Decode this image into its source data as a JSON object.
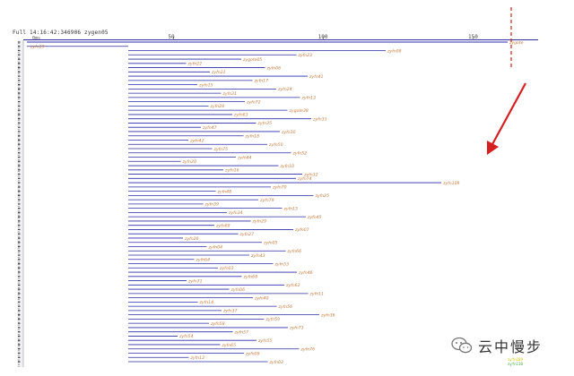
{
  "header": {
    "title": "Full 14:16:42:346906 zygen05",
    "unit_label": "0ms"
  },
  "axis": {
    "ticks": [
      "50",
      "100",
      "150"
    ],
    "range": [
      0,
      175
    ]
  },
  "colors": {
    "line": "#2b2ba8",
    "label": "#c8783a",
    "annotation": "#d42020",
    "axis": "#3030a0"
  },
  "thread_labels": [
    "zygote",
    "zyfn19",
    "zyfn08",
    "zyfn23",
    "zygote05",
    "zyfn22",
    "zyfn06",
    "zyfn21",
    "zyfn41",
    "zyfn17",
    "zyfn15",
    "zyfn24",
    "zyfn31",
    "zyfn13",
    "zyfn72",
    "zyfn28",
    "zygote38",
    "zyfn63",
    "zyfn33",
    "zyfn35",
    "zyfn47",
    "zyfn30",
    "zyfn18",
    "zyfn42",
    "zyfn50",
    "zyfn75",
    "zyfn52",
    "zyfn44",
    "zyfn20",
    "zyfn10",
    "zyfn16",
    "zyfn32",
    "zyfn74",
    "zyfn109",
    "zyfn70",
    "zyfn48",
    "zyfn25",
    "zyfn79",
    "zyfn39",
    "zyfn15",
    "zyfn34",
    "zyfn45",
    "zyfn29",
    "zyfn69",
    "zyfn07",
    "zyfn27",
    "zyfn26",
    "zyfn05",
    "zyfn04",
    "zyfn66",
    "zyfn43",
    "zyfn64",
    "zyfn53",
    "zyfn03",
    "zyfn46",
    "zyfn68",
    "zyfn71",
    "zyfn62",
    "zyfn06",
    "zyfn11",
    "zyfn40",
    "zyfn14",
    "zyfn56",
    "zyfn37",
    "zyfn36",
    "zyfn59",
    "zyfn58",
    "zyfn73",
    "zyfn57",
    "zyfn54",
    "zyfn55",
    "zyfn65",
    "zyfn76",
    "zyfn09",
    "zyfn12",
    "zyfn02"
  ],
  "watermark": {
    "text": "云中慢步"
  },
  "legend": {
    "items": [
      "zyfn109",
      "zyfn110"
    ]
  }
}
